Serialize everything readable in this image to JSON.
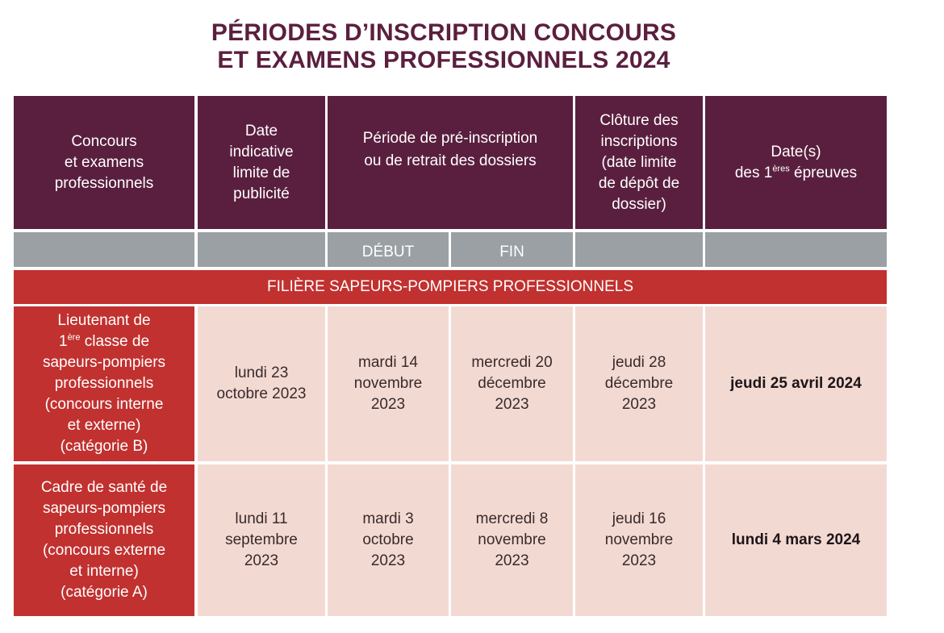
{
  "title": {
    "line1": "PÉRIODES D’INSCRIPTION CONCOURS",
    "line2": "ET EXAMENS PROFESSIONNELS 2024"
  },
  "header": {
    "col1": [
      "Concours",
      "et examens",
      "professionnels"
    ],
    "col2": [
      "Date",
      "indicative",
      "limite de",
      "publicité"
    ],
    "col3": [
      "Période de pré-inscription",
      "ou de retrait des dossiers"
    ],
    "col4": [
      "Clôture des",
      "inscriptions",
      "(date limite",
      "de dépôt de",
      "dossier)"
    ],
    "col5_line1": "Date(s)",
    "col5_line2_pre": "des 1",
    "col5_line2_sup": "ères",
    "col5_line2_post": " épreuves"
  },
  "subheader": {
    "debut": "DÉBUT",
    "fin": "FIN"
  },
  "band": "FILIÈRE SAPEURS-POMPIERS PROFESSIONNELS",
  "rows": [
    {
      "name_line1": "Lieutenant de",
      "name_line2_pre": "1",
      "name_line2_sup": "ère",
      "name_line2_post": " classe de",
      "name_rest": [
        "sapeurs-pompiers",
        "professionnels",
        "(concours interne",
        "et externe)",
        "(catégorie B)"
      ],
      "publicite": [
        "lundi 23",
        "octobre 2023"
      ],
      "debut": [
        "mardi 14",
        "novembre",
        "2023"
      ],
      "fin": [
        "mercredi 20",
        "décembre",
        "2023"
      ],
      "cloture": [
        "jeudi 28",
        "décembre",
        "2023"
      ],
      "epreuves": "jeudi 25 avril 2024"
    },
    {
      "name_rest": [
        "Cadre de santé de",
        "sapeurs-pompiers",
        "professionnels",
        "(concours externe",
        "et interne)",
        "(catégorie A)"
      ],
      "publicite": [
        "lundi 11",
        "septembre",
        "2023"
      ],
      "debut": [
        "mardi 3",
        "octobre",
        "2023"
      ],
      "fin": [
        "mercredi 8",
        "novembre",
        "2023"
      ],
      "cloture": [
        "jeudi 16",
        "novembre",
        "2023"
      ],
      "epreuves": "lundi 4 mars 2024"
    }
  ]
}
